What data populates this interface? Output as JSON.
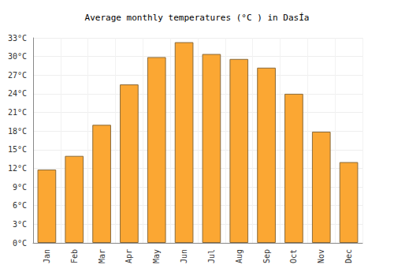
{
  "chart_data": {
    "type": "bar",
    "title": "Average monthly temperatures (°C ) in DasÍa",
    "categories": [
      "Jan",
      "Feb",
      "Mar",
      "Apr",
      "May",
      "Jun",
      "Jul",
      "Aug",
      "Sep",
      "Oct",
      "Nov",
      "Dec"
    ],
    "values": [
      11.8,
      14,
      19,
      25.5,
      29.9,
      32.3,
      30.4,
      29.6,
      28.2,
      24,
      17.9,
      13
    ],
    "color": "#fba733",
    "ylim": [
      0,
      33
    ],
    "yticks": [
      {
        "value": 0,
        "label": "0°C"
      },
      {
        "value": 3,
        "label": "3°C"
      },
      {
        "value": 6,
        "label": "6°C"
      },
      {
        "value": 9,
        "label": "9°C"
      },
      {
        "value": 12,
        "label": "12°C"
      },
      {
        "value": 15,
        "label": "15°C"
      },
      {
        "value": 18,
        "label": "18°C"
      },
      {
        "value": 21,
        "label": "21°C"
      },
      {
        "value": 24,
        "label": "24°C"
      },
      {
        "value": 27,
        "label": "27°C"
      },
      {
        "value": 30,
        "label": "30°C"
      },
      {
        "value": 33,
        "label": "33°C"
      }
    ],
    "grid": true
  }
}
